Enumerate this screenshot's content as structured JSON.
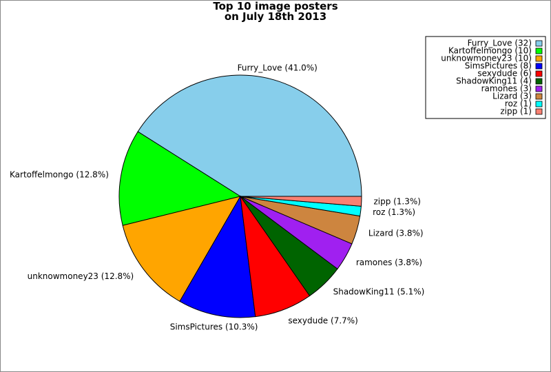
{
  "chart_data": {
    "type": "pie",
    "title": "Top 10 image posters\non July 18th 2013",
    "categories": [
      "Furry_Love (32)",
      "Kartoffelmongo (10)",
      "unknowmoney23 (10)",
      "SimsPictures (8)",
      "sexydude (6)",
      "ShadowKing11 (4)",
      "ramones (3)",
      "Lizard (3)",
      "roz (1)",
      "zipp (1)"
    ],
    "values": [
      41.0,
      12.8,
      12.8,
      10.3,
      7.7,
      5.1,
      3.8,
      3.8,
      1.3,
      1.3
    ],
    "value_labels": [
      "Furry_Love (41.0%)",
      "Kartoffelmongo (12.8%)",
      "unknowmoney23 (12.8%)",
      "SimsPictures (10.3%)",
      "sexydude (7.7%)",
      "ShadowKing11 (5.1%)",
      "ramones (3.8%)",
      "Lizard (3.8%)",
      "roz (1.3%)",
      "zipp (1.3%)"
    ],
    "colors": [
      "#87ceeb",
      "#00ff00",
      "#ffa500",
      "#0000ff",
      "#ff0000",
      "#006400",
      "#a020f0",
      "#cd853f",
      "#00ffff",
      "#fa8072"
    ],
    "legend": "upper right"
  }
}
